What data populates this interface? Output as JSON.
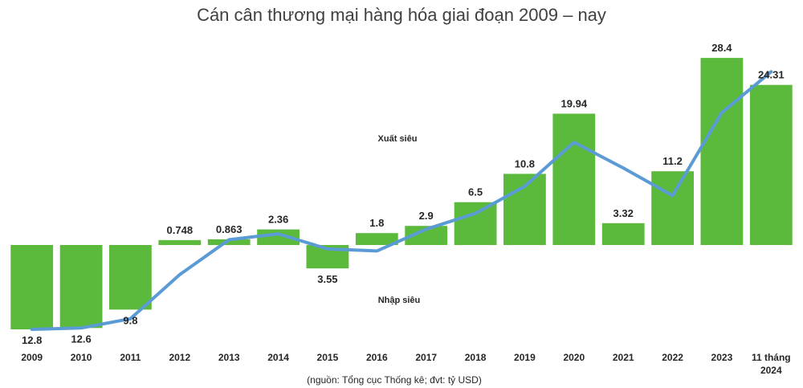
{
  "chart_data": {
    "type": "bar",
    "title": "Cán cân thương mại hàng hóa giai đoạn 2009 – nay",
    "source_note": "(nguồn: Tổng cục Thống kê; đvt: tỷ USD)",
    "annotations": {
      "surplus": "Xuất siêu",
      "deficit": "Nhập siêu"
    },
    "categories": [
      "2009",
      "2010",
      "2011",
      "2012",
      "2013",
      "2014",
      "2015",
      "2016",
      "2017",
      "2018",
      "2019",
      "2020",
      "2021",
      "2022",
      "2023",
      "11 tháng 2024"
    ],
    "values": [
      -12.8,
      -12.6,
      -9.8,
      0.748,
      0.863,
      2.36,
      -3.55,
      1.8,
      2.9,
      6.5,
      10.8,
      19.94,
      3.32,
      11.2,
      28.4,
      24.31
    ],
    "value_labels": [
      "12.8",
      "12.6",
      "9.8",
      "0.748",
      "0.863",
      "2.36",
      "3.55",
      "1.8",
      "2.9",
      "6.5",
      "10.8",
      "19.94",
      "3.32",
      "11.2",
      "28.4",
      "24.31"
    ],
    "line_values": [
      -12.8,
      -12.6,
      -11.2,
      -4.5,
      0.8,
      1.7,
      -0.6,
      -0.9,
      2.4,
      4.8,
      8.9,
      15.6,
      11.7,
      7.5,
      20.1,
      26.3
    ],
    "colors": {
      "bar": "#5BBA3C",
      "line": "#5B9BD5",
      "text": "#262626",
      "title": "#404040"
    },
    "ylim": [
      -13.5,
      30
    ],
    "grid": false,
    "legend": "none"
  }
}
